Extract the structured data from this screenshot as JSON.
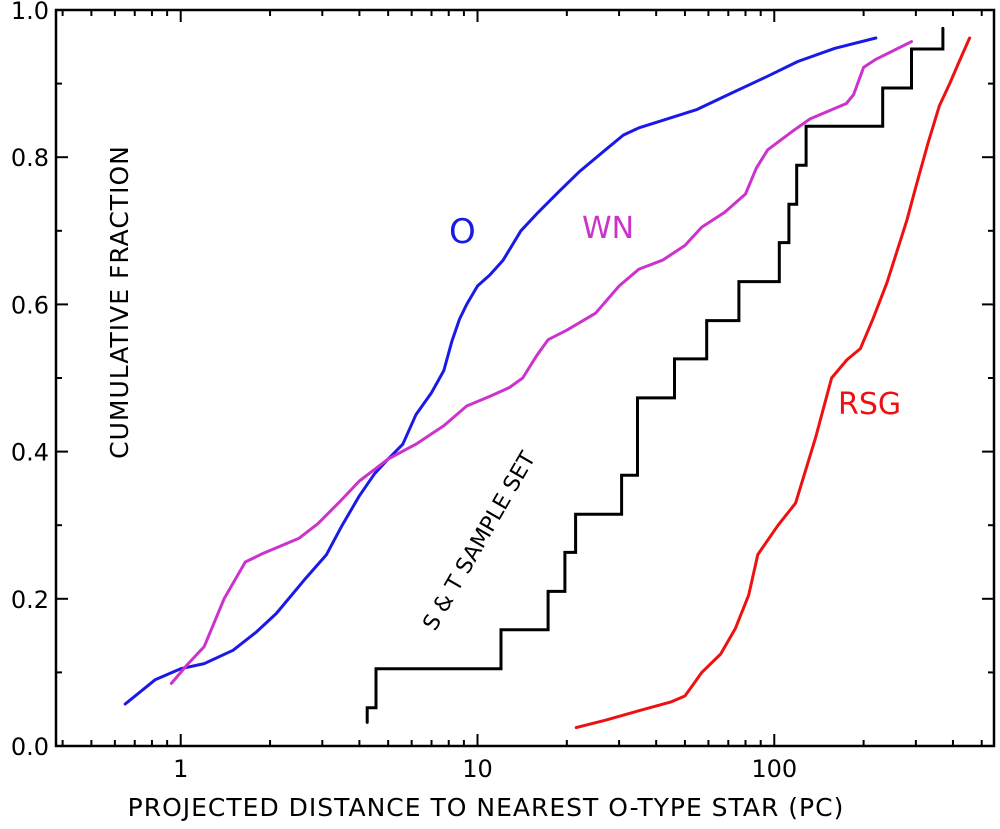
{
  "chart_data": {
    "type": "line",
    "title": "",
    "xlabel": "PROJECTED  DISTANCE  TO  NEAREST  O-TYPE  STAR  (PC)",
    "ylabel": "CUMULATIVE  FRACTION",
    "xscale": "log",
    "xlim": [
      0.38,
      550
    ],
    "ylim": [
      0,
      1.0
    ],
    "x_tick_labels": [
      {
        "value": 1,
        "label": "1"
      },
      {
        "value": 10,
        "label": "10"
      },
      {
        "value": 100,
        "label": "100"
      }
    ],
    "y_tick_labels": [
      {
        "value": 0.0,
        "label": "0.0"
      },
      {
        "value": 0.2,
        "label": "0.2"
      },
      {
        "value": 0.4,
        "label": "0.4"
      },
      {
        "value": 0.6,
        "label": "0.6"
      },
      {
        "value": 0.8,
        "label": "0.8"
      },
      {
        "value": 1.0,
        "label": "1.0"
      }
    ],
    "grid": false,
    "legend": "none",
    "series": [
      {
        "name": "O",
        "color": "#1a1ae6",
        "step": false,
        "points": [
          [
            0.65,
            0.057
          ],
          [
            0.82,
            0.09
          ],
          [
            1.0,
            0.105
          ],
          [
            1.2,
            0.112
          ],
          [
            1.5,
            0.13
          ],
          [
            1.8,
            0.155
          ],
          [
            2.1,
            0.18
          ],
          [
            2.6,
            0.225
          ],
          [
            3.1,
            0.26
          ],
          [
            3.5,
            0.3
          ],
          [
            4.0,
            0.34
          ],
          [
            4.5,
            0.37
          ],
          [
            5.0,
            0.39
          ],
          [
            5.6,
            0.41
          ],
          [
            6.2,
            0.45
          ],
          [
            7.0,
            0.48
          ],
          [
            7.7,
            0.51
          ],
          [
            8.2,
            0.55
          ],
          [
            8.7,
            0.58
          ],
          [
            9.2,
            0.6
          ],
          [
            10.0,
            0.625
          ],
          [
            11.0,
            0.64
          ],
          [
            12.2,
            0.66
          ],
          [
            14.0,
            0.7
          ],
          [
            16.0,
            0.725
          ],
          [
            19.0,
            0.755
          ],
          [
            22.0,
            0.78
          ],
          [
            27.0,
            0.81
          ],
          [
            31.0,
            0.83
          ],
          [
            35.0,
            0.84
          ],
          [
            42.0,
            0.85
          ],
          [
            55.0,
            0.865
          ],
          [
            70.0,
            0.885
          ],
          [
            95.0,
            0.91
          ],
          [
            120.0,
            0.93
          ],
          [
            160.0,
            0.948
          ],
          [
            220.0,
            0.962
          ]
        ]
      },
      {
        "name": "WN",
        "color": "#cc33cc",
        "step": false,
        "points": [
          [
            0.93,
            0.085
          ],
          [
            1.05,
            0.11
          ],
          [
            1.2,
            0.135
          ],
          [
            1.4,
            0.2
          ],
          [
            1.65,
            0.25
          ],
          [
            1.9,
            0.262
          ],
          [
            2.5,
            0.282
          ],
          [
            2.9,
            0.302
          ],
          [
            3.4,
            0.33
          ],
          [
            4.0,
            0.36
          ],
          [
            5.0,
            0.39
          ],
          [
            6.2,
            0.41
          ],
          [
            7.7,
            0.435
          ],
          [
            9.2,
            0.462
          ],
          [
            11.0,
            0.475
          ],
          [
            12.8,
            0.487
          ],
          [
            14.2,
            0.5
          ],
          [
            15.8,
            0.53
          ],
          [
            17.3,
            0.552
          ],
          [
            20.0,
            0.565
          ],
          [
            25.0,
            0.588
          ],
          [
            30.0,
            0.625
          ],
          [
            35.0,
            0.648
          ],
          [
            42.0,
            0.66
          ],
          [
            50.0,
            0.68
          ],
          [
            57.0,
            0.705
          ],
          [
            68.0,
            0.725
          ],
          [
            80.0,
            0.75
          ],
          [
            87.0,
            0.785
          ],
          [
            95.0,
            0.81
          ],
          [
            115.0,
            0.835
          ],
          [
            132.0,
            0.852
          ],
          [
            175.0,
            0.873
          ],
          [
            185.0,
            0.885
          ],
          [
            200.0,
            0.922
          ],
          [
            220.0,
            0.933
          ],
          [
            290.0,
            0.957
          ]
        ]
      },
      {
        "name": "S & T SAMPLE SET",
        "color": "#000000",
        "step": true,
        "points": [
          [
            4.25,
            0.032
          ],
          [
            4.25,
            0.052
          ],
          [
            4.55,
            0.052
          ],
          [
            4.55,
            0.105
          ],
          [
            12.0,
            0.105
          ],
          [
            12.0,
            0.158
          ],
          [
            17.3,
            0.158
          ],
          [
            17.3,
            0.21
          ],
          [
            19.7,
            0.21
          ],
          [
            19.7,
            0.263
          ],
          [
            21.4,
            0.263
          ],
          [
            21.4,
            0.315
          ],
          [
            30.6,
            0.315
          ],
          [
            30.6,
            0.368
          ],
          [
            34.6,
            0.368
          ],
          [
            34.6,
            0.473
          ],
          [
            46.1,
            0.473
          ],
          [
            46.1,
            0.526
          ],
          [
            59.2,
            0.526
          ],
          [
            59.2,
            0.578
          ],
          [
            76.0,
            0.578
          ],
          [
            76.0,
            0.631
          ],
          [
            104.0,
            0.631
          ],
          [
            104.0,
            0.684
          ],
          [
            112.0,
            0.684
          ],
          [
            112.0,
            0.736
          ],
          [
            119.0,
            0.736
          ],
          [
            119.0,
            0.789
          ],
          [
            128.0,
            0.789
          ],
          [
            128.0,
            0.842
          ],
          [
            232.0,
            0.842
          ],
          [
            232.0,
            0.894
          ],
          [
            290.0,
            0.894
          ],
          [
            290.0,
            0.947
          ],
          [
            370.0,
            0.947
          ],
          [
            370.0,
            0.975
          ]
        ]
      },
      {
        "name": "RSG",
        "color": "#ee1111",
        "step": false,
        "points": [
          [
            21.5,
            0.025
          ],
          [
            27.0,
            0.035
          ],
          [
            35.0,
            0.048
          ],
          [
            45.0,
            0.06
          ],
          [
            50.0,
            0.068
          ],
          [
            53.0,
            0.082
          ],
          [
            57.0,
            0.1
          ],
          [
            66.0,
            0.125
          ],
          [
            74.0,
            0.16
          ],
          [
            82.0,
            0.205
          ],
          [
            88.0,
            0.26
          ],
          [
            103.0,
            0.3
          ],
          [
            118.0,
            0.33
          ],
          [
            138.0,
            0.42
          ],
          [
            156.0,
            0.5
          ],
          [
            176.0,
            0.525
          ],
          [
            195.0,
            0.54
          ],
          [
            215.0,
            0.58
          ],
          [
            240.0,
            0.63
          ],
          [
            280.0,
            0.715
          ],
          [
            300.0,
            0.76
          ],
          [
            330.0,
            0.82
          ],
          [
            360.0,
            0.87
          ],
          [
            390.0,
            0.9
          ],
          [
            420.0,
            0.93
          ],
          [
            455.0,
            0.962
          ]
        ]
      }
    ],
    "annotations": [
      {
        "text": "O",
        "color": "#1a1ae6"
      },
      {
        "text": "WN",
        "color": "#cc33cc"
      },
      {
        "text": "S & T SAMPLE SET",
        "color": "#000000"
      },
      {
        "text": "RSG",
        "color": "#ee1111"
      }
    ]
  }
}
